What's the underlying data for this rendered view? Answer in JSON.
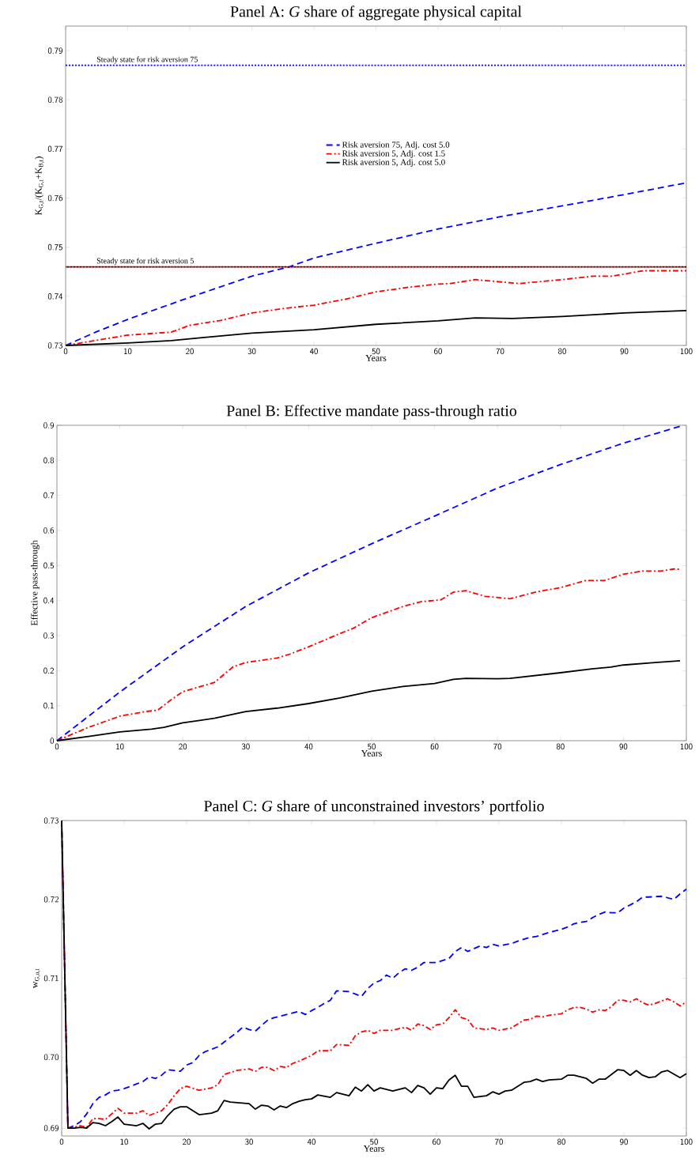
{
  "chart_data": [
    {
      "type": "line",
      "title": "Panel A: *G* share of aggregate physical capital",
      "xlabel": "Years",
      "ylabel": "K$_{G,t}$/(K$_{G,t}$+K$_{B,t}$)",
      "xlim": [
        0,
        100
      ],
      "ylim": [
        0.73,
        0.795
      ],
      "xticks": [
        0,
        10,
        20,
        30,
        40,
        50,
        60,
        70,
        80,
        90,
        100
      ],
      "yticks": [
        0.73,
        0.74,
        0.75,
        0.76,
        0.77,
        0.78,
        0.79
      ],
      "grid": false,
      "legend": "center",
      "marker": "none",
      "series": [
        {
          "name": "Risk aversion 75, Adj. cost 5.0",
          "color": "#0000ff",
          "line_style": "dashed",
          "x": [
            0,
            5,
            10,
            20,
            30,
            36,
            40,
            50,
            60,
            70,
            80,
            90,
            100
          ],
          "values": [
            0.73,
            0.7328,
            0.7353,
            0.7398,
            0.7441,
            0.746,
            0.7478,
            0.7508,
            0.7537,
            0.7562,
            0.7584,
            0.7607,
            0.7631
          ]
        },
        {
          "name": "Risk aversion 5, Adj. cost 1.5",
          "color": "#ff0000",
          "line_style": "dashdot",
          "x": [
            0,
            10,
            17,
            20,
            25,
            30,
            35,
            40,
            45,
            50,
            55,
            60,
            62,
            66,
            73,
            80,
            85,
            88,
            93,
            100
          ],
          "values": [
            0.73,
            0.7321,
            0.7327,
            0.7341,
            0.7351,
            0.7366,
            0.7375,
            0.7382,
            0.7394,
            0.7409,
            0.7418,
            0.7425,
            0.7426,
            0.7434,
            0.7426,
            0.7434,
            0.7441,
            0.7441,
            0.7452,
            0.7452
          ]
        },
        {
          "name": "Risk aversion 5, Adj. cost 5.0",
          "color": "#000000",
          "line_style": "solid",
          "x": [
            0,
            10,
            17,
            22,
            30,
            40,
            50,
            60,
            66,
            72,
            80,
            90,
            100
          ],
          "values": [
            0.73,
            0.7305,
            0.731,
            0.7316,
            0.7325,
            0.7332,
            0.7343,
            0.735,
            0.7356,
            0.7355,
            0.7359,
            0.7366,
            0.7371
          ]
        }
      ],
      "ref_lines": [
        {
          "axis": "y",
          "value": 0.787,
          "label": "Steady state for risk aversion 75",
          "color": "#0000ff",
          "line_style": "dotted"
        },
        {
          "axis": "y",
          "value": 0.746,
          "label": "Steady state for risk aversion 5",
          "color": "#ff0000",
          "line_style": "dotted"
        },
        {
          "axis": "y",
          "value": 0.746,
          "color": "#000000",
          "line_style": "dotted"
        }
      ]
    },
    {
      "type": "line",
      "title": "Panel B: Effective mandate pass-through ratio",
      "xlabel": "Years",
      "ylabel": "Effective pass-through",
      "xlim": [
        0,
        100
      ],
      "ylim": [
        0,
        0.9
      ],
      "xticks": [
        0,
        10,
        20,
        30,
        40,
        50,
        60,
        70,
        80,
        90,
        100
      ],
      "yticks": [
        0,
        0.1,
        0.2,
        0.3,
        0.4,
        0.5,
        0.6,
        0.7,
        0.8,
        0.9
      ],
      "grid": false,
      "marker": "none",
      "series": [
        {
          "color": "#0000ff",
          "line_style": "dashed",
          "x": [
            0,
            10,
            20,
            30,
            40,
            50,
            60,
            70,
            80,
            90,
            99
          ],
          "values": [
            0,
            0.139,
            0.268,
            0.383,
            0.479,
            0.562,
            0.641,
            0.721,
            0.788,
            0.849,
            0.897
          ]
        },
        {
          "color": "#ff0000",
          "line_style": "dashdot",
          "x": [
            0,
            5,
            10,
            14,
            16,
            18,
            20,
            25,
            28,
            30,
            35,
            37,
            40,
            45,
            47,
            50,
            55,
            58,
            61,
            63,
            65,
            68,
            72,
            76,
            80,
            84,
            87,
            90,
            93,
            96,
            98,
            99
          ],
          "values": [
            0,
            0.038,
            0.07,
            0.083,
            0.087,
            0.115,
            0.14,
            0.166,
            0.211,
            0.223,
            0.236,
            0.247,
            0.268,
            0.306,
            0.32,
            0.351,
            0.383,
            0.397,
            0.402,
            0.424,
            0.428,
            0.412,
            0.405,
            0.424,
            0.437,
            0.457,
            0.457,
            0.475,
            0.484,
            0.484,
            0.49,
            0.489
          ]
        },
        {
          "color": "#000000",
          "line_style": "solid",
          "x": [
            0,
            5,
            10,
            15,
            17,
            20,
            25,
            30,
            35,
            40,
            45,
            50,
            55,
            60,
            63,
            65,
            70,
            72,
            80,
            85,
            88,
            90,
            95,
            99
          ],
          "values": [
            0,
            0.012,
            0.025,
            0.033,
            0.038,
            0.051,
            0.064,
            0.083,
            0.093,
            0.106,
            0.122,
            0.141,
            0.155,
            0.163,
            0.175,
            0.178,
            0.177,
            0.178,
            0.194,
            0.205,
            0.21,
            0.216,
            0.223,
            0.228
          ]
        }
      ]
    },
    {
      "type": "line",
      "title": "Panel C: *G* share of unconstrained investors’ portfolio",
      "xlabel": "Years",
      "ylabel": "w$_{G,u,t}$",
      "xlim": [
        0,
        100
      ],
      "ylim": [
        0.69,
        0.73
      ],
      "xticks": [
        0,
        10,
        20,
        30,
        40,
        50,
        60,
        70,
        80,
        90,
        100
      ],
      "yticks": [
        {
          "value": 0.691,
          "label": "0.69"
        },
        {
          "value": 0.7,
          "label": "0.70"
        },
        0.71,
        0.72,
        0.73
      ],
      "grid": false,
      "marker": "none",
      "series": [
        {
          "color": "#0000ff",
          "line_style": "dashed",
          "x": [
            0,
            1,
            2,
            3,
            4,
            5,
            6,
            7,
            8,
            9,
            10,
            12,
            13,
            14,
            15,
            16,
            17,
            18,
            19,
            20,
            21,
            22,
            23,
            24,
            25,
            26,
            27,
            28,
            29,
            30,
            31,
            32,
            33,
            34,
            36,
            37,
            38,
            39,
            40,
            41,
            42,
            43,
            44,
            46,
            47,
            48,
            49,
            50,
            51,
            52,
            53,
            54,
            55,
            56,
            57,
            58,
            59,
            60,
            62,
            63,
            64,
            65,
            67,
            68,
            69,
            70,
            72,
            73,
            75,
            76,
            78,
            80,
            81,
            82,
            83,
            84,
            85,
            86,
            87,
            88,
            89,
            90,
            92,
            93,
            94,
            96,
            97,
            98,
            99,
            100
          ],
          "values": [
            0.73,
            0.691,
            0.6913,
            0.6918,
            0.6928,
            0.6941,
            0.6949,
            0.6952,
            0.6957,
            0.6958,
            0.696,
            0.6966,
            0.6969,
            0.6975,
            0.6973,
            0.6977,
            0.6984,
            0.6983,
            0.6982,
            0.699,
            0.6993,
            0.7002,
            0.7007,
            0.701,
            0.7013,
            0.7019,
            0.7025,
            0.7031,
            0.7038,
            0.7035,
            0.7033,
            0.704,
            0.7047,
            0.705,
            0.7054,
            0.7056,
            0.7058,
            0.7054,
            0.7059,
            0.7063,
            0.7068,
            0.7072,
            0.7084,
            0.7083,
            0.708,
            0.7077,
            0.7087,
            0.7094,
            0.7097,
            0.7104,
            0.71,
            0.7107,
            0.7112,
            0.711,
            0.7114,
            0.712,
            0.712,
            0.712,
            0.7125,
            0.7134,
            0.7139,
            0.7134,
            0.7141,
            0.7139,
            0.7143,
            0.7141,
            0.7144,
            0.7147,
            0.7152,
            0.7153,
            0.7158,
            0.7162,
            0.7165,
            0.7169,
            0.7171,
            0.7172,
            0.7177,
            0.7181,
            0.7184,
            0.7183,
            0.7183,
            0.7189,
            0.7197,
            0.7203,
            0.7203,
            0.7204,
            0.7202,
            0.72,
            0.7207,
            0.7213
          ]
        },
        {
          "color": "#ff0000",
          "line_style": "dashdot",
          "x": [
            0,
            1,
            2,
            3,
            4,
            5,
            6,
            7,
            8,
            9,
            10,
            12,
            13,
            14,
            16,
            17,
            18,
            19,
            20,
            22,
            24,
            25,
            26,
            28,
            30,
            31,
            32,
            33,
            34,
            35,
            36,
            37,
            38,
            40,
            41,
            43,
            44,
            46,
            47,
            48,
            49,
            50,
            51,
            53,
            55,
            56,
            57,
            58,
            59,
            60,
            61,
            62,
            63,
            64,
            65,
            66,
            68,
            69,
            70,
            72,
            74,
            75,
            76,
            77,
            78,
            80,
            81,
            82,
            83,
            84,
            85,
            86,
            87,
            88,
            89,
            90,
            91,
            92,
            93,
            94,
            95,
            96,
            97,
            98,
            99,
            100
          ],
          "values": [
            0.73,
            0.691,
            0.6911,
            0.6913,
            0.6911,
            0.6922,
            0.6922,
            0.6921,
            0.6928,
            0.6935,
            0.6929,
            0.6929,
            0.6932,
            0.6926,
            0.6932,
            0.694,
            0.6951,
            0.696,
            0.6963,
            0.6958,
            0.6961,
            0.6965,
            0.6978,
            0.6983,
            0.6985,
            0.6982,
            0.6987,
            0.6987,
            0.6983,
            0.6988,
            0.6987,
            0.6992,
            0.6995,
            0.7002,
            0.7008,
            0.7008,
            0.7016,
            0.7015,
            0.7027,
            0.7032,
            0.7034,
            0.703,
            0.7034,
            0.7034,
            0.7038,
            0.7034,
            0.7042,
            0.704,
            0.7035,
            0.7041,
            0.7042,
            0.705,
            0.706,
            0.705,
            0.7048,
            0.7037,
            0.7035,
            0.7037,
            0.7034,
            0.7037,
            0.7047,
            0.7048,
            0.7052,
            0.7051,
            0.7053,
            0.7055,
            0.706,
            0.7063,
            0.7063,
            0.7061,
            0.7057,
            0.706,
            0.7059,
            0.7064,
            0.7072,
            0.7072,
            0.707,
            0.7074,
            0.7069,
            0.7066,
            0.7068,
            0.7071,
            0.7074,
            0.707,
            0.7065,
            0.707
          ]
        },
        {
          "color": "#000000",
          "line_style": "solid",
          "x": [
            0,
            1,
            2,
            3,
            4,
            5,
            6,
            7,
            8,
            9,
            10,
            12,
            13,
            14,
            15,
            16,
            17,
            18,
            19,
            20,
            21,
            22,
            24,
            25,
            26,
            27,
            30,
            31,
            32,
            33,
            34,
            35,
            36,
            37,
            38,
            39,
            40,
            41,
            43,
            44,
            46,
            47,
            48,
            49,
            50,
            51,
            53,
            55,
            56,
            57,
            58,
            59,
            60,
            61,
            62,
            63,
            64,
            65,
            66,
            68,
            69,
            70,
            71,
            72,
            74,
            75,
            76,
            77,
            78,
            80,
            81,
            82,
            84,
            85,
            86,
            87,
            88,
            89,
            90,
            91,
            92,
            93,
            94,
            95,
            96,
            97,
            99,
            100
          ],
          "values": [
            0.73,
            0.691,
            0.691,
            0.6911,
            0.691,
            0.6917,
            0.6916,
            0.6913,
            0.6918,
            0.6924,
            0.6915,
            0.6913,
            0.6916,
            0.6909,
            0.6915,
            0.6916,
            0.6926,
            0.6934,
            0.6937,
            0.6937,
            0.6932,
            0.6927,
            0.6929,
            0.6932,
            0.6945,
            0.6943,
            0.6941,
            0.6934,
            0.6939,
            0.6938,
            0.6933,
            0.6938,
            0.6936,
            0.6941,
            0.6944,
            0.6946,
            0.6947,
            0.6952,
            0.6949,
            0.6955,
            0.6951,
            0.6962,
            0.6957,
            0.6965,
            0.6957,
            0.6961,
            0.6957,
            0.6961,
            0.6955,
            0.6964,
            0.6961,
            0.6953,
            0.6961,
            0.696,
            0.6971,
            0.6977,
            0.6963,
            0.6963,
            0.6949,
            0.6951,
            0.6956,
            0.6953,
            0.6957,
            0.6958,
            0.6968,
            0.6969,
            0.6972,
            0.6969,
            0.6971,
            0.6972,
            0.6977,
            0.6977,
            0.6973,
            0.6967,
            0.6972,
            0.6972,
            0.6978,
            0.6984,
            0.6983,
            0.6977,
            0.6983,
            0.6977,
            0.6974,
            0.6975,
            0.6981,
            0.6983,
            0.6974,
            0.6979
          ]
        }
      ]
    }
  ]
}
